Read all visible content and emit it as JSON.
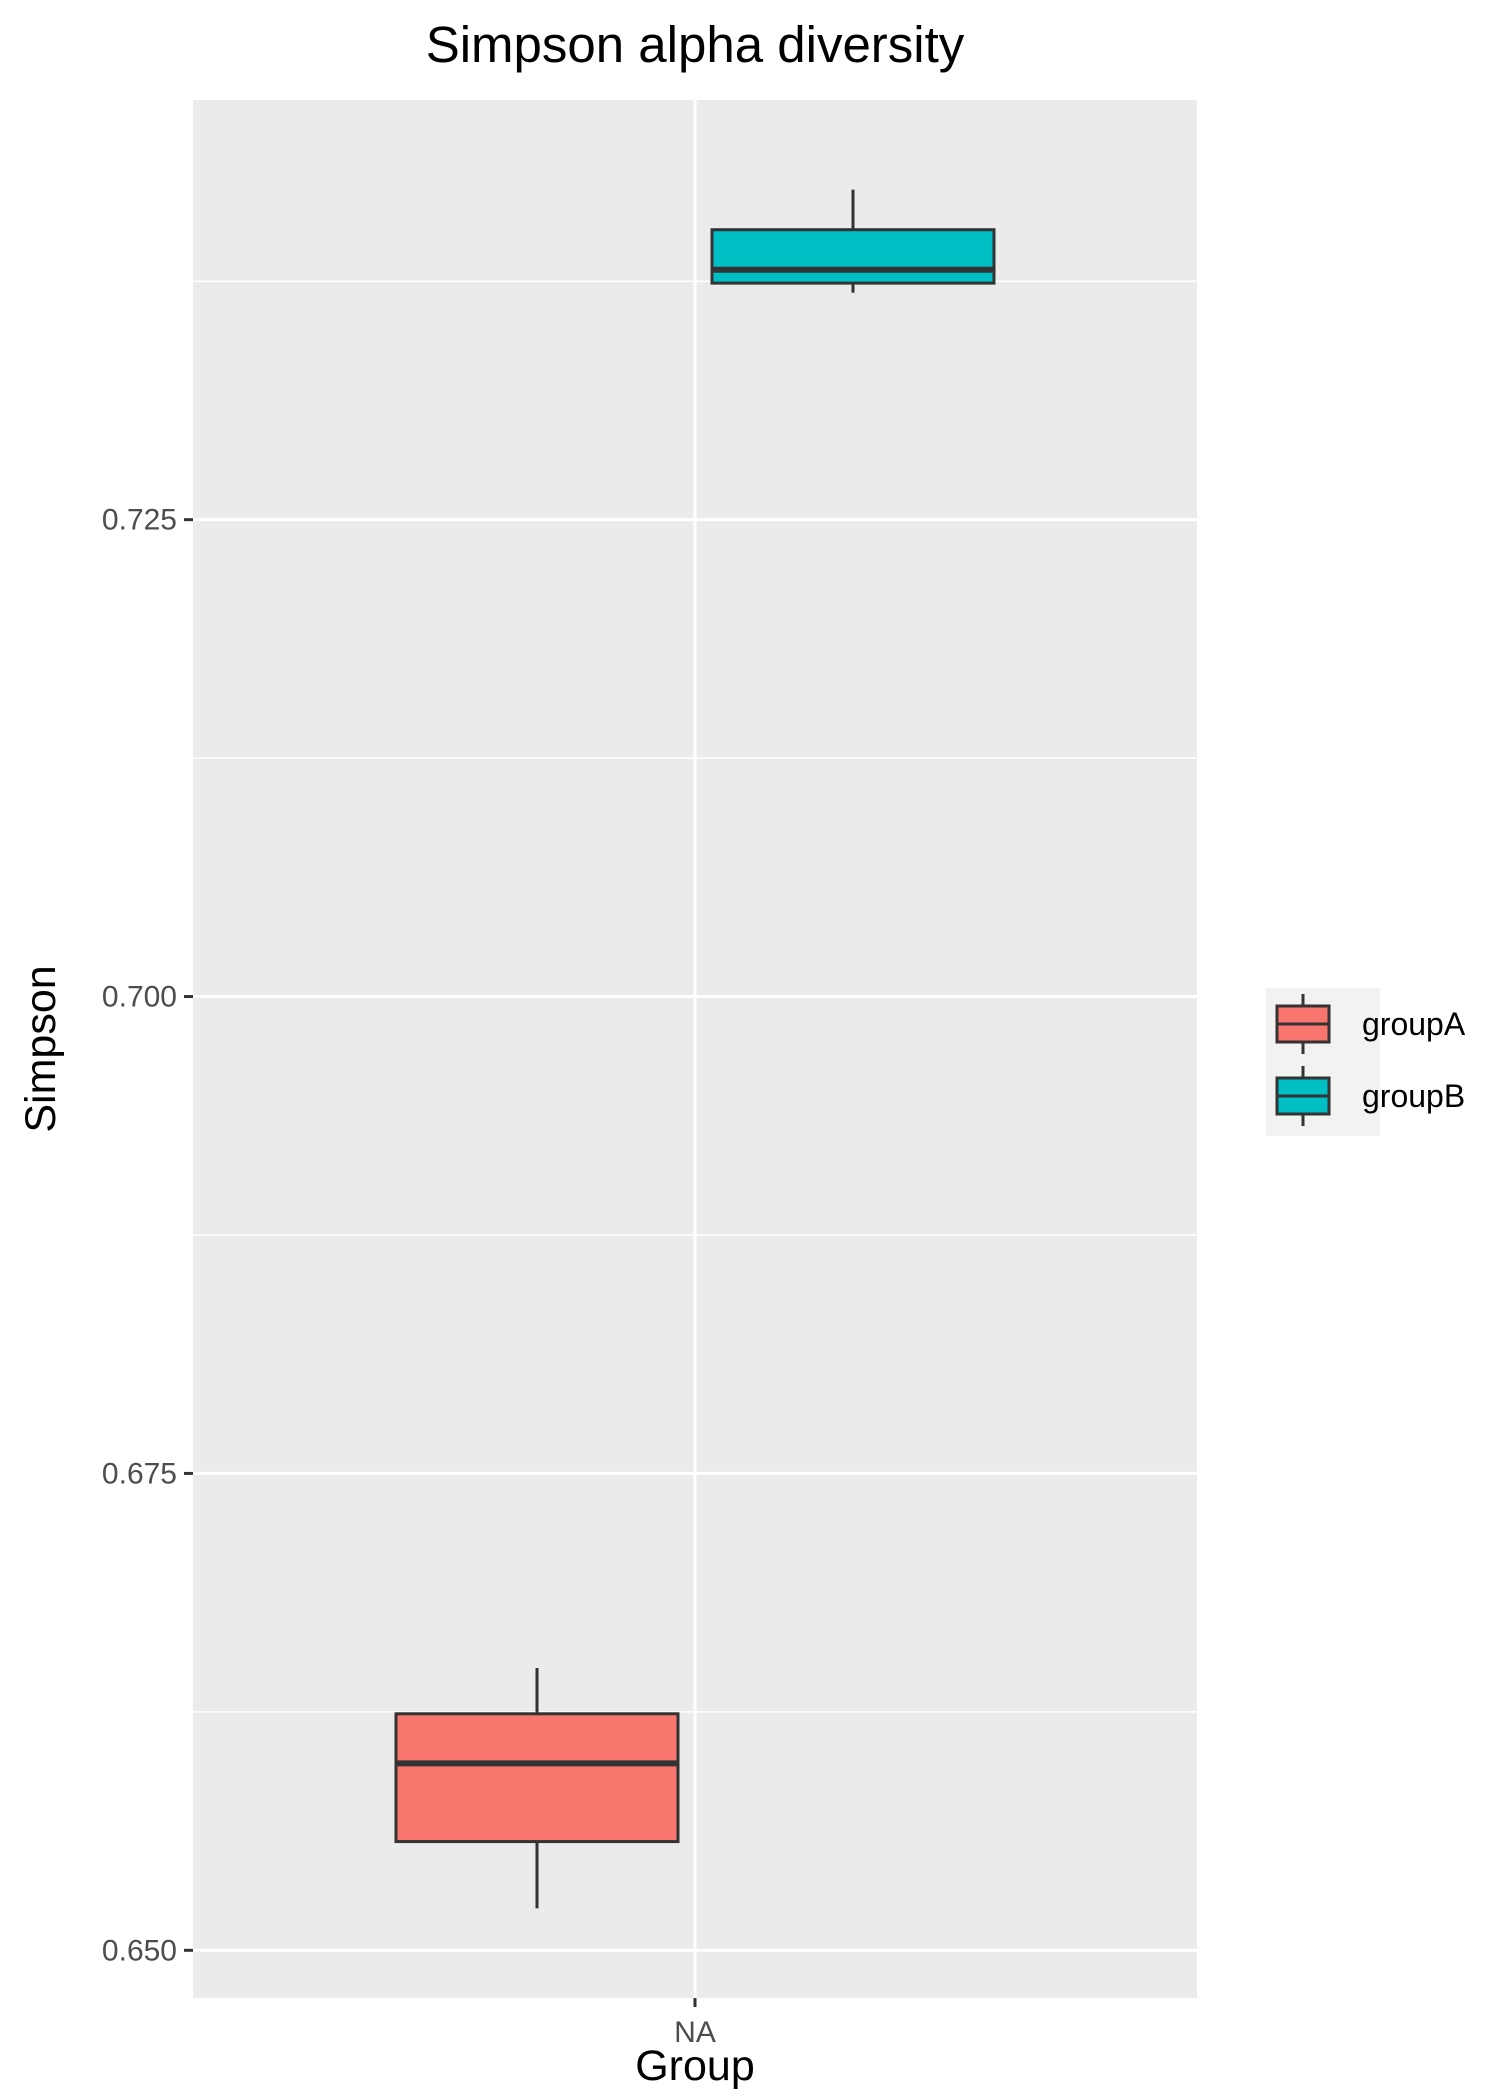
{
  "chart_data": {
    "type": "boxplot",
    "title": "Simpson alpha diversity",
    "xlabel": "Group",
    "ylabel": "Simpson",
    "categories": [
      "NA"
    ],
    "y_ticks": [
      0.65,
      0.675,
      0.7,
      0.725
    ],
    "y_tick_labels": [
      "0.650",
      "0.675",
      "0.700",
      "0.725"
    ],
    "ylim": [
      0.6475,
      0.747
    ],
    "grid": true,
    "legend_position": "right",
    "series": [
      {
        "name": "groupA",
        "color": "#F8766D",
        "min": 0.6522,
        "q1": 0.6557,
        "median": 0.6598,
        "q3": 0.6624,
        "max": 0.6648
      },
      {
        "name": "groupB",
        "color": "#00BFC4",
        "min": 0.7369,
        "q1": 0.7374,
        "median": 0.7381,
        "q3": 0.7402,
        "max": 0.7423
      }
    ]
  }
}
